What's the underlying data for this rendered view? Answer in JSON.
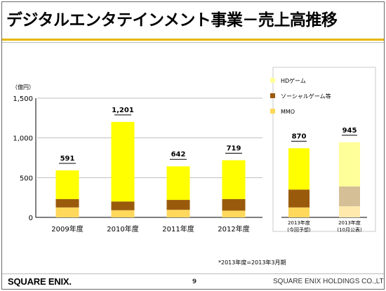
{
  "page": {
    "title": "デジタルエンタテインメント事業－売上高推移",
    "footnote": "*2013年度=2013年3月期",
    "logo": "SQUARE ENIX.",
    "page_number": "9",
    "company": "SQUARE ENIX HOLDINGS CO.,LTD."
  },
  "colors": {
    "hd": "#ffff00",
    "social": "#9a5a0c",
    "mmo": "#ffd85c",
    "hd_plan": "#ffff99",
    "social_plan": "#d4bf97",
    "mmo_plan": "#ffe9ad",
    "grid": "#bfbfbf",
    "accent": "#e6b800"
  },
  "chart_data": [
    {
      "type": "bar",
      "stacked": true,
      "unit_label": "（億円）",
      "ylim": [
        0,
        1500
      ],
      "yticks": [
        "0",
        "500",
        "1,000",
        "1,500"
      ],
      "grid": true,
      "categories": [
        "2009年度",
        "2010年度",
        "2011年度",
        "2012年度"
      ],
      "totals": [
        "591",
        "1,201",
        "642",
        "719"
      ],
      "series": [
        {
          "name": "MMO",
          "values": [
            125,
            90,
            95,
            85
          ]
        },
        {
          "name": "ソーシャルゲーム等",
          "values": [
            105,
            110,
            125,
            145
          ]
        },
        {
          "name": "HDゲーム",
          "values": [
            361,
            1001,
            422,
            489
          ]
        }
      ]
    },
    {
      "type": "bar",
      "stacked": true,
      "ylim": [
        0,
        1500
      ],
      "categories": [
        [
          "2013年度",
          "(今回予想)"
        ],
        [
          "2013年度",
          "(10月公表)"
        ]
      ],
      "totals": [
        "870",
        "945"
      ],
      "series": [
        {
          "name": "MMO",
          "values": [
            125,
            140
          ]
        },
        {
          "name": "ソーシャルゲーム等",
          "values": [
            225,
            250
          ]
        },
        {
          "name": "HDゲーム",
          "values": [
            520,
            555
          ]
        }
      ],
      "legend": {
        "placement": "top-right",
        "entries": [
          "HDゲーム",
          "ソーシャルゲーム等",
          "MMO"
        ]
      }
    }
  ]
}
